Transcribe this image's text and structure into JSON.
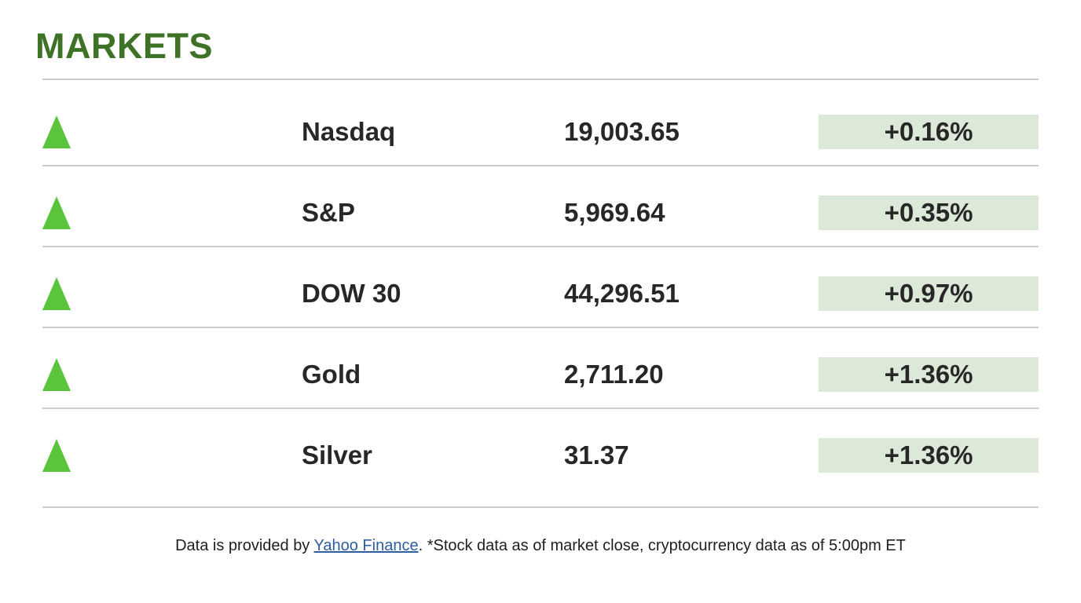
{
  "header": {
    "title": "MARKETS"
  },
  "colors": {
    "title_green": "#3e7327",
    "arrow_green": "#5ac43c",
    "badge_background": "#dde9d8",
    "row_text": "#272727",
    "separator": "#cbcbcb",
    "link_blue": "#2e5e9f"
  },
  "icons": {
    "row_direction_icon": "up-triangle"
  },
  "chart_data": {
    "type": "table",
    "title": "MARKETS",
    "columns": [
      "direction",
      "name",
      "value",
      "change"
    ],
    "rows": [
      {
        "direction": "up",
        "name": "Nasdaq",
        "value": "19,003.65",
        "change": "+0.16%"
      },
      {
        "direction": "up",
        "name": "S&P",
        "value": "5,969.64",
        "change": "+0.35%"
      },
      {
        "direction": "up",
        "name": "DOW 30",
        "value": "44,296.51",
        "change": "+0.97%"
      },
      {
        "direction": "up",
        "name": "Gold",
        "value": "2,711.20",
        "change": "+1.36%"
      },
      {
        "direction": "up",
        "name": "Silver",
        "value": "31.37",
        "change": "+1.36%"
      }
    ],
    "layout": {
      "grid": "horizontal separators only",
      "change_badge": "filled light-green rectangle"
    }
  },
  "footer": {
    "prefix": "Data is provided by ",
    "link_label": "Yahoo Finance",
    "suffix": ". *Stock data as of market close, cryptocurrency data as of 5:00pm ET"
  }
}
